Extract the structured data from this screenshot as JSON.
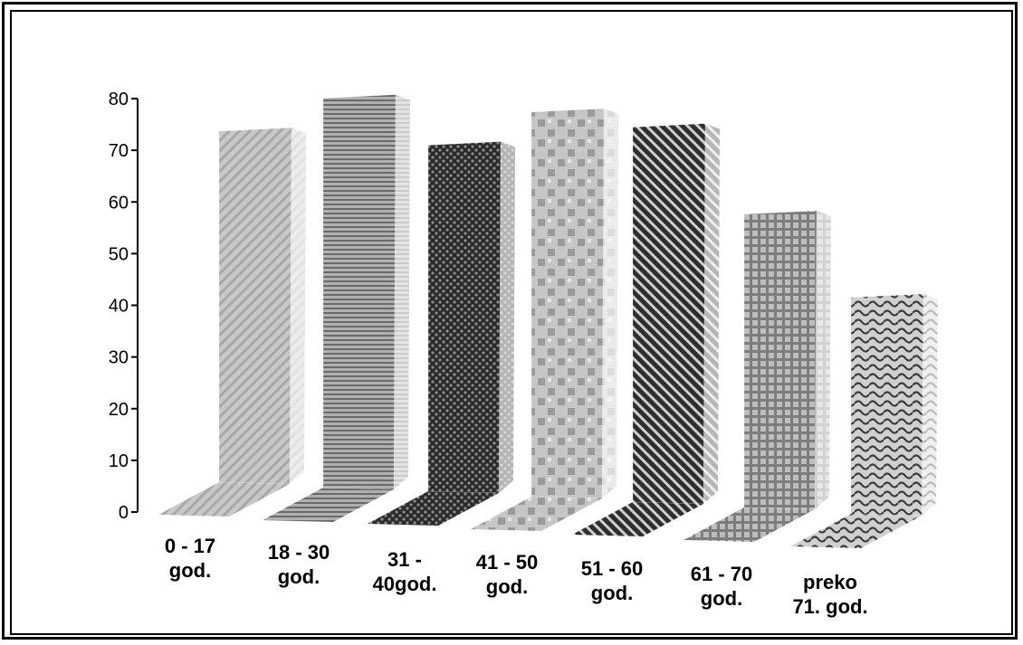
{
  "chart_data": {
    "type": "bar",
    "categories": [
      [
        "0 - 17",
        "god."
      ],
      [
        "18 - 30",
        "god."
      ],
      [
        "31 -",
        "40god."
      ],
      [
        "41 - 50",
        "god."
      ],
      [
        "51 - 60",
        "god."
      ],
      [
        "61 - 70",
        "god."
      ],
      [
        "preko",
        "71. god."
      ]
    ],
    "values": [
      73,
      81,
      72,
      80,
      78,
      61,
      45
    ],
    "ylim": [
      0,
      80
    ],
    "yticks": [
      "0",
      "10",
      "20",
      "30",
      "40",
      "50",
      "60",
      "70",
      "80"
    ],
    "style": "3d-ribbon",
    "grid": false,
    "legend": "none",
    "patterns": [
      "diagonal-light",
      "horizontal-lines",
      "dark-dots",
      "checker-light",
      "diagonal-dark",
      "grid",
      "wave"
    ]
  }
}
